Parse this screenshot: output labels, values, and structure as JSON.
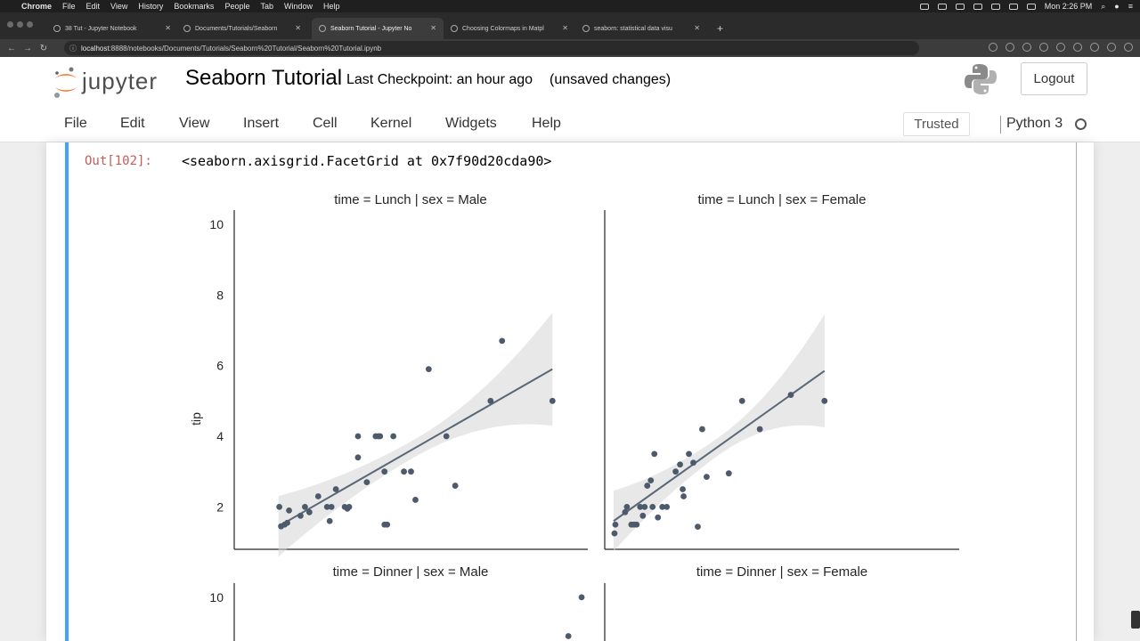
{
  "macos": {
    "menus": [
      "Chrome",
      "File",
      "Edit",
      "View",
      "History",
      "Bookmarks",
      "People",
      "Tab",
      "Window",
      "Help"
    ],
    "clock": "Mon 2:26 PM"
  },
  "browser": {
    "tabs": [
      {
        "label": "38 Tut - Jupyter Notebook"
      },
      {
        "label": "Documents/Tutorials/Seaborn"
      },
      {
        "label": "Seaborn Tutorial - Jupyter No"
      },
      {
        "label": "Choosing Colormaps in Matpl"
      },
      {
        "label": "seaborn: statistical data visu"
      }
    ],
    "active_tab": 2,
    "url_host": "localhost",
    "url_rest": ":8888/notebooks/Documents/Tutorials/Seaborn%20Tutorial/Seaborn%20Tutorial.ipynb"
  },
  "jupyter": {
    "logo_text": "jupyter",
    "title": "Seaborn Tutorial",
    "checkpoint": "Last Checkpoint: an hour ago",
    "unsaved": "(unsaved changes)",
    "logout": "Logout",
    "menu": [
      "File",
      "Edit",
      "View",
      "Insert",
      "Cell",
      "Kernel",
      "Widgets",
      "Help"
    ],
    "trusted": "Trusted",
    "kernel": "Python 3"
  },
  "cell": {
    "prompt": "Out[102]:",
    "repr": "<seaborn.axisgrid.FacetGrid at 0x7f90d20cda90>"
  },
  "colors": {
    "point": "#4c5a6b",
    "line": "#5a6777",
    "band": "#d6d6d6",
    "cell_selected": "#42a5f5"
  },
  "chart_data": [
    {
      "type": "scatter",
      "title": "time = Lunch | sex = Male",
      "ylabel": "tip",
      "yticks": [
        2,
        4,
        6,
        8,
        10
      ],
      "ylim": [
        0.8,
        10.4
      ],
      "xlim": [
        5,
        45
      ],
      "points": [
        [
          10.1,
          2.0
        ],
        [
          10.3,
          1.45
        ],
        [
          10.7,
          1.5
        ],
        [
          11,
          1.55
        ],
        [
          11.2,
          1.9
        ],
        [
          12.5,
          1.75
        ],
        [
          13,
          2.0
        ],
        [
          13.5,
          1.85
        ],
        [
          14.5,
          2.3
        ],
        [
          15.5,
          2.0
        ],
        [
          16,
          2.0
        ],
        [
          15.8,
          1.6
        ],
        [
          16.5,
          2.5
        ],
        [
          17.5,
          2.0
        ],
        [
          18,
          2.0
        ],
        [
          17.8,
          1.95
        ],
        [
          19,
          3.4
        ],
        [
          19,
          4.0
        ],
        [
          20,
          2.7
        ],
        [
          21,
          4.0
        ],
        [
          21.3,
          4.0
        ],
        [
          21.5,
          4.0
        ],
        [
          22,
          3.0
        ],
        [
          22,
          1.5
        ],
        [
          22.3,
          1.5
        ],
        [
          23,
          4.0
        ],
        [
          24.2,
          3.0
        ],
        [
          25,
          3.0
        ],
        [
          25.5,
          2.2
        ],
        [
          27,
          5.9
        ],
        [
          29,
          4.0
        ],
        [
          30,
          2.6
        ],
        [
          34,
          5.0
        ],
        [
          35.3,
          6.7
        ],
        [
          41,
          5.0
        ]
      ],
      "fit": {
        "x": [
          10,
          41
        ],
        "y": [
          1.45,
          5.9
        ]
      }
    },
    {
      "type": "scatter",
      "title": "time = Lunch | sex = Female",
      "yticks": [
        2,
        4,
        6,
        8,
        10
      ],
      "ylim": [
        0.8,
        10.4
      ],
      "xlim": [
        5,
        45
      ],
      "points": [
        [
          6.1,
          1.25
        ],
        [
          6.2,
          1.5
        ],
        [
          7.3,
          1.85
        ],
        [
          7.5,
          2.0
        ],
        [
          8,
          1.5
        ],
        [
          8.3,
          1.5
        ],
        [
          8.6,
          1.5
        ],
        [
          9,
          2.0
        ],
        [
          9.3,
          1.75
        ],
        [
          9.5,
          2.0
        ],
        [
          9.8,
          2.6
        ],
        [
          10.2,
          2.75
        ],
        [
          10.4,
          2.0
        ],
        [
          10.6,
          3.5
        ],
        [
          11,
          1.7
        ],
        [
          11.5,
          2.0
        ],
        [
          12,
          2.0
        ],
        [
          13,
          3.0
        ],
        [
          13.5,
          3.2
        ],
        [
          13.8,
          2.5
        ],
        [
          13.9,
          2.3
        ],
        [
          14.5,
          3.5
        ],
        [
          15,
          3.25
        ],
        [
          15.5,
          1.44
        ],
        [
          16,
          4.2
        ],
        [
          16.5,
          2.85
        ],
        [
          19,
          2.95
        ],
        [
          20.5,
          5.0
        ],
        [
          22.5,
          4.2
        ],
        [
          26,
          5.17
        ],
        [
          29.8,
          5.0
        ]
      ],
      "fit": {
        "x": [
          6,
          29.8
        ],
        "y": [
          1.6,
          5.85
        ]
      }
    },
    {
      "type": "scatter",
      "title": "time = Dinner | sex = Male",
      "yticks": [
        10
      ],
      "ylim": [
        0.8,
        10.4
      ],
      "xlim": [
        5,
        45
      ],
      "points": [
        [
          42.8,
          8.9
        ],
        [
          44.3,
          10.0
        ]
      ],
      "fit": null
    },
    {
      "type": "scatter",
      "title": "time = Dinner | sex = Female",
      "ylim": [
        0.8,
        10.4
      ],
      "xlim": [
        5,
        45
      ],
      "points": [],
      "fit": null
    }
  ]
}
